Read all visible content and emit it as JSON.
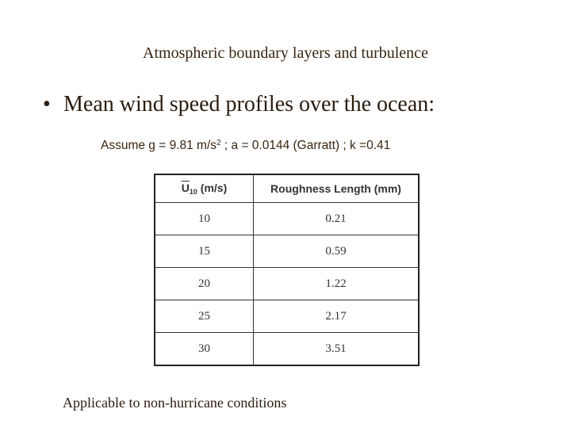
{
  "slide": {
    "subtitle": "Atmospheric boundary layers and turbulence",
    "bullet_symbol": "•",
    "bullet_text": "Mean wind speed profiles over the ocean:",
    "assume": {
      "prefix": "Assume g = 9.81 m/s",
      "superscript": "2",
      "suffix": " ;   a = 0.0144 (Garratt) ;   k =0.41"
    },
    "table": {
      "col1_header": {
        "symbol": "U",
        "subscript": "10",
        "unit": " (m/s)"
      },
      "col2_header": "Roughness Length (mm)",
      "rows": [
        {
          "u10": "10",
          "roughness": "0.21"
        },
        {
          "u10": "15",
          "roughness": "0.59"
        },
        {
          "u10": "20",
          "roughness": "1.22"
        },
        {
          "u10": "25",
          "roughness": "2.17"
        },
        {
          "u10": "30",
          "roughness": "3.51"
        }
      ]
    },
    "note": "Applicable to non-hurricane conditions"
  }
}
